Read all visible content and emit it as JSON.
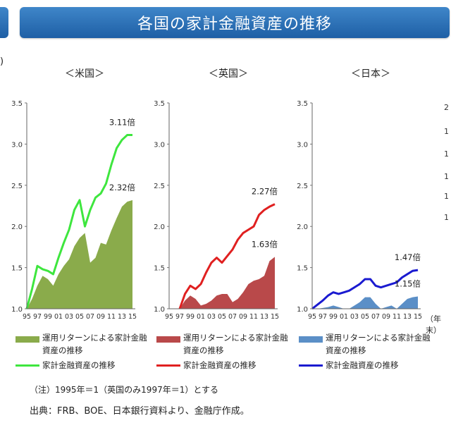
{
  "title": "各国の家計金融資産の推移",
  "unit_paren": ")",
  "year_unit": "（年末）",
  "right_marks": [
    "2",
    "1",
    "1",
    "1",
    "1",
    "1"
  ],
  "note": "（注）1995年＝1（英国のみ1997年＝1）とする",
  "source": "出典：FRB、BOE、日本銀行資料より、金融庁作成。",
  "chart_data": [
    {
      "type": "area",
      "panel_title": "＜米国＞",
      "x": [
        "95",
        "96",
        "97",
        "98",
        "99",
        "00",
        "01",
        "02",
        "03",
        "04",
        "05",
        "06",
        "07",
        "08",
        "09",
        "10",
        "11",
        "12",
        "13",
        "14",
        "15"
      ],
      "x_tick_labels": [
        "95",
        "97",
        "99",
        "01",
        "03",
        "05",
        "07",
        "09",
        "11",
        "13",
        "15"
      ],
      "ylim": [
        1.0,
        3.5
      ],
      "yticks": [
        "1.0",
        "1.5",
        "2.0",
        "2.5",
        "3.0",
        "3.5"
      ],
      "series": [
        {
          "name": "運用リターンによる家計金融資産の推移",
          "kind": "area",
          "color": "#8aab4b",
          "values": [
            1.0,
            1.12,
            1.28,
            1.4,
            1.36,
            1.28,
            1.42,
            1.52,
            1.6,
            1.76,
            1.86,
            1.92,
            1.56,
            1.62,
            1.8,
            1.78,
            1.95,
            2.1,
            2.24,
            2.3,
            2.32
          ]
        },
        {
          "name": "家計金融資産の推移",
          "kind": "line",
          "color": "#3ee63e",
          "values": [
            1.0,
            1.24,
            1.52,
            1.48,
            1.46,
            1.42,
            1.62,
            1.8,
            1.96,
            2.2,
            2.32,
            2.0,
            2.2,
            2.35,
            2.4,
            2.52,
            2.75,
            2.95,
            3.05,
            3.11,
            3.11
          ]
        }
      ],
      "annotations": [
        {
          "text": "3.11倍",
          "x": "15",
          "y": 3.11
        },
        {
          "text": "2.32倍",
          "x": "15",
          "y": 2.32
        }
      ]
    },
    {
      "type": "area",
      "panel_title": "＜英国＞",
      "x": [
        "95",
        "96",
        "97",
        "98",
        "99",
        "00",
        "01",
        "02",
        "03",
        "04",
        "05",
        "06",
        "07",
        "08",
        "09",
        "10",
        "11",
        "12",
        "13",
        "14",
        "15"
      ],
      "x_tick_labels": [
        "95",
        "97",
        "99",
        "01",
        "03",
        "05",
        "07",
        "09",
        "11",
        "13",
        "15"
      ],
      "ylim": [
        1.0,
        3.5
      ],
      "yticks": [
        "1.0",
        "1.5",
        "2.0",
        "2.5",
        "3.0",
        "3.5"
      ],
      "series": [
        {
          "name": "運用リターンによる家計金融資産の推移",
          "kind": "area",
          "color": "#b9494a",
          "values": [
            null,
            null,
            1.0,
            1.1,
            1.16,
            1.12,
            1.04,
            1.06,
            1.1,
            1.16,
            1.18,
            1.18,
            1.08,
            1.12,
            1.2,
            1.3,
            1.34,
            1.36,
            1.4,
            1.58,
            1.63
          ]
        },
        {
          "name": "家計金融資産の推移",
          "kind": "line",
          "color": "#e02020",
          "values": [
            null,
            null,
            1.0,
            1.18,
            1.28,
            1.24,
            1.3,
            1.44,
            1.56,
            1.62,
            1.56,
            1.64,
            1.72,
            1.84,
            1.92,
            1.96,
            2.0,
            2.14,
            2.2,
            2.24,
            2.27
          ]
        }
      ],
      "annotations": [
        {
          "text": "2.27倍",
          "x": "15",
          "y": 2.27
        },
        {
          "text": "1.63倍",
          "x": "15",
          "y": 1.63
        }
      ]
    },
    {
      "type": "area",
      "panel_title": "＜日本＞",
      "x": [
        "95",
        "96",
        "97",
        "98",
        "99",
        "00",
        "01",
        "02",
        "03",
        "04",
        "05",
        "06",
        "07",
        "08",
        "09",
        "10",
        "11",
        "12",
        "13",
        "14",
        "15"
      ],
      "x_tick_labels": [
        "95",
        "97",
        "99",
        "01",
        "03",
        "05",
        "07",
        "09",
        "11",
        "13",
        "15"
      ],
      "ylim": [
        1.0,
        3.5
      ],
      "yticks": [
        "1.0",
        "1.5",
        "2.0",
        "2.5",
        "3.0",
        "3.5"
      ],
      "series": [
        {
          "name": "運用リターンによる家計金融資産の推移",
          "kind": "area",
          "color": "#5b8fc7",
          "values": [
            1.0,
            1.0,
            1.01,
            1.02,
            1.04,
            1.02,
            1.0,
            1.0,
            1.04,
            1.08,
            1.14,
            1.14,
            1.06,
            1.0,
            1.02,
            1.04,
            1.0,
            1.06,
            1.12,
            1.14,
            1.15
          ]
        },
        {
          "name": "家計金融資産の推移",
          "kind": "line",
          "color": "#1a1ad0",
          "values": [
            1.0,
            1.05,
            1.1,
            1.16,
            1.2,
            1.18,
            1.2,
            1.22,
            1.26,
            1.3,
            1.36,
            1.36,
            1.28,
            1.26,
            1.28,
            1.3,
            1.32,
            1.38,
            1.42,
            1.46,
            1.47
          ]
        }
      ],
      "annotations": [
        {
          "text": "1.47倍",
          "x": "15",
          "y": 1.47
        },
        {
          "text": "1.15倍",
          "x": "15",
          "y": 1.15
        }
      ]
    }
  ]
}
